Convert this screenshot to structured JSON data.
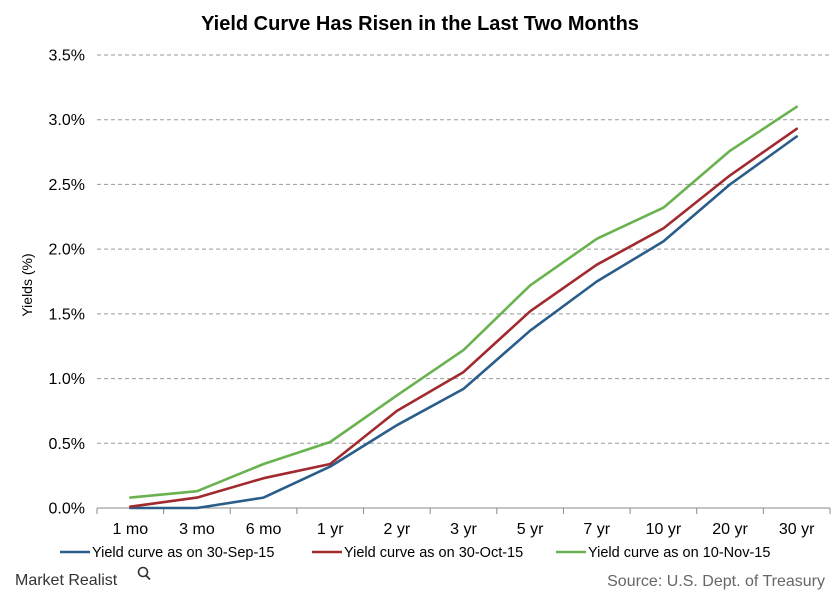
{
  "chart_data": {
    "type": "line",
    "title": "Yield Curve Has Risen in the Last Two Months",
    "xlabel": "",
    "ylabel": "Yields (%)",
    "ylim": [
      0,
      3.5
    ],
    "y_ticks": [
      "0.0%",
      "0.5%",
      "1.0%",
      "1.5%",
      "2.0%",
      "2.5%",
      "3.0%",
      "3.5%"
    ],
    "categories": [
      "1 mo",
      "3 mo",
      "6 mo",
      "1 yr",
      "2 yr",
      "3 yr",
      "5 yr",
      "7 yr",
      "10 yr",
      "20 yr",
      "30 yr"
    ],
    "grid": true,
    "legend_position": "bottom",
    "series": [
      {
        "name": "Yield curve as on 30-Sep-15",
        "color": "#2a5d8a",
        "values": [
          0.0,
          0.0,
          0.08,
          0.32,
          0.64,
          0.92,
          1.37,
          1.75,
          2.06,
          2.5,
          2.87
        ]
      },
      {
        "name": "Yield curve as on 30-Oct-15",
        "color": "#a12a2f",
        "values": [
          0.01,
          0.08,
          0.23,
          0.34,
          0.75,
          1.05,
          1.52,
          1.88,
          2.16,
          2.57,
          2.93
        ]
      },
      {
        "name": "Yield curve as on 10-Nov-15",
        "color": "#6ab24f",
        "values": [
          0.08,
          0.13,
          0.34,
          0.51,
          0.87,
          1.22,
          1.72,
          2.08,
          2.32,
          2.76,
          3.1
        ]
      }
    ]
  },
  "footer": {
    "brand": "Market Realist",
    "source": "Source: U.S. Dept. of Treasury"
  }
}
